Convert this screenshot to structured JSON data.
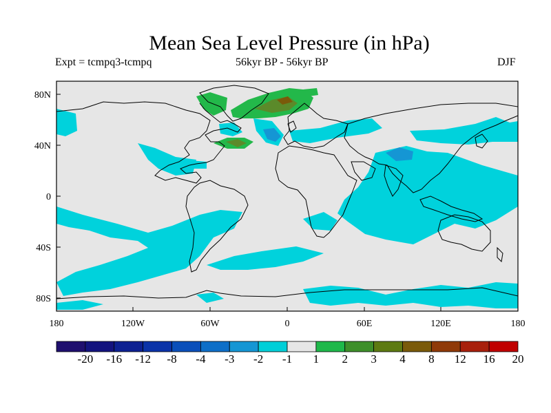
{
  "title": "Mean Sea Level Pressure (in hPa)",
  "subtitle_left": "Expt = tcmpq3-tcmpq",
  "subtitle_center": "56kyr BP - 56kyr BP",
  "subtitle_right": "DJF",
  "lat_ticks": [
    "80N",
    "40N",
    "0",
    "40S",
    "80S"
  ],
  "lon_ticks": [
    "180",
    "120W",
    "60W",
    "0",
    "60E",
    "120E",
    "180"
  ],
  "colorbar": {
    "labels": [
      "-20",
      "-16",
      "-12",
      "-8",
      "-4",
      "-3",
      "-2",
      "-1",
      "1",
      "2",
      "3",
      "4",
      "8",
      "12",
      "16",
      "20"
    ],
    "colors": [
      "#1f0f6e",
      "#13137e",
      "#0d2191",
      "#0b33a8",
      "#0b4fba",
      "#0e6fc8",
      "#1596d4",
      "#00cfd8",
      "#e6e6e6",
      "#1fb84a",
      "#3e8f2a",
      "#5d7a12",
      "#7a5a0a",
      "#8f3a08",
      "#a8200c",
      "#c00000"
    ]
  },
  "colors": {
    "land_background": "#e6e6e6",
    "negative_anomaly": "#00d2dc",
    "strong_negative": "#1596d4",
    "positive_anomaly": "#23b84a",
    "strong_positive": "#5b8a2a",
    "peak_positive": "#7a5a0a"
  }
}
